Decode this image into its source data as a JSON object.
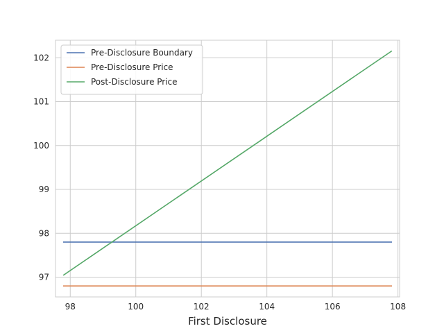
{
  "chart_data": {
    "type": "line",
    "title": "",
    "xlabel": "First Disclosure",
    "ylabel": "",
    "xlim": [
      97.55,
      108.05
    ],
    "ylim": [
      96.55,
      102.4
    ],
    "x_ticks": [
      98,
      100,
      102,
      104,
      106,
      108
    ],
    "y_ticks": [
      97,
      98,
      99,
      100,
      101,
      102
    ],
    "grid": true,
    "legend_position": "top-left",
    "series": [
      {
        "name": "Pre-Disclosure Boundary",
        "color": "#4c72b0",
        "x": [
          97.8,
          107.8
        ],
        "y": [
          97.8,
          97.8
        ]
      },
      {
        "name": "Pre-Disclosure Price",
        "color": "#dd8452",
        "x": [
          97.8,
          107.8
        ],
        "y": [
          96.8,
          96.8
        ]
      },
      {
        "name": "Post-Disclosure Price",
        "color": "#55a868",
        "x": [
          97.8,
          107.8
        ],
        "y": [
          97.05,
          102.15
        ]
      }
    ]
  }
}
